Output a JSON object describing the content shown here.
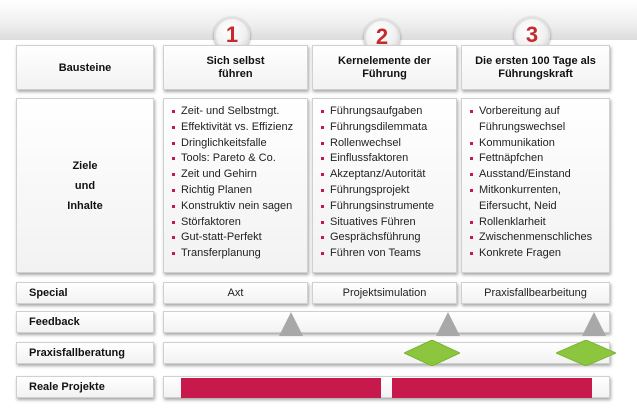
{
  "rows": {
    "bausteine": "Bausteine",
    "ziele_line1": "Ziele",
    "ziele_line2": "und",
    "ziele_line3": "Inhalte",
    "special": "Special",
    "feedback": "Feedback",
    "praxisfallberatung": "Praxisfallberatung",
    "reale_projekte": "Reale Projekte"
  },
  "columns": [
    {
      "number": "1",
      "title_line1": "Sich selbst",
      "title_line2": "führen",
      "items": [
        "Zeit- und Selbstmgt.",
        "Effektivität vs. Effizienz",
        "Dringlichkeitsfalle",
        "Tools: Pareto & Co.",
        "Zeit und Gehirn",
        "Richtig Planen",
        "Konstruktiv nein sagen",
        "Störfaktoren",
        "Gut-statt-Perfekt",
        "Transferplanung"
      ],
      "special": "Axt"
    },
    {
      "number": "2",
      "title_line1": "Kernelemente der",
      "title_line2": "Führung",
      "items": [
        "Führungsaufgaben",
        "Führungsdilemmata",
        "Rollenwechsel",
        "Einflussfaktoren",
        "Akzeptanz/Autorität",
        "Führungsprojekt",
        "Führungsinstrumente",
        "Situatives Führen",
        "Gesprächsführung",
        "Führen von Teams"
      ],
      "special": "Projektsimulation"
    },
    {
      "number": "3",
      "title_line1": "Die ersten 100 Tage als",
      "title_line2": "Führungskraft",
      "items": [
        "Vorbereitung auf",
        "Führungswechsel",
        "Kommunikation",
        "Fettnäpfchen",
        "Ausstand/Einstand",
        "Mitkonkurrenten,",
        "Eifersucht, Neid",
        "Rollenklarheit",
        "Zwischenmenschliches",
        "Konkrete Fragen"
      ],
      "special": "Praxisfallbearbeitung"
    }
  ],
  "colors": {
    "number": "#c62a2a",
    "bullet": "#c2185b",
    "feedback_marker": "#a8a8a8",
    "beratung_marker": "#8cc63f",
    "projekt_bar": "#c8194c"
  }
}
